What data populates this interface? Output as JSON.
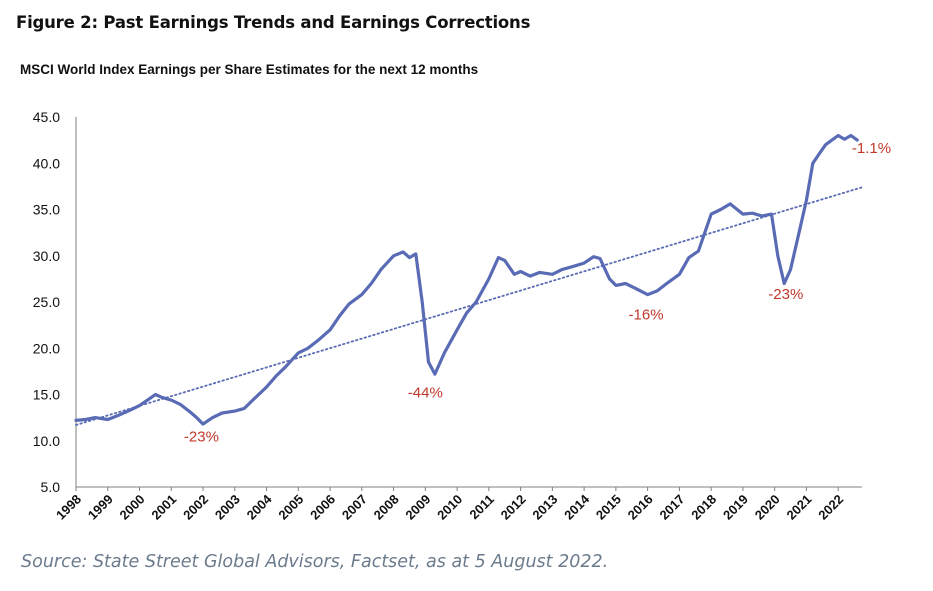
{
  "figure_title": "Figure 2: Past Earnings Trends and Earnings Corrections",
  "source_note": "Source: State Street Global Advisors, Factset, as at 5 August 2022.",
  "colors": {
    "series": "#5a6bb5",
    "trend": "#5a6bb5",
    "annotation": "#c0392b",
    "source_text": "#6b7b8c"
  },
  "chart_data": {
    "type": "line",
    "title": "MSCI World Index Earnings per Share Estimates for the next 12 months",
    "xlabel": "",
    "ylabel": "",
    "grid": false,
    "legend": "none",
    "ylim": [
      5,
      45
    ],
    "xlim": [
      1998.0,
      2022.75
    ],
    "yticks": [
      "5.0",
      "10.0",
      "15.0",
      "20.0",
      "25.0",
      "30.0",
      "35.0",
      "40.0",
      "45.0"
    ],
    "xticks": [
      "1998",
      "1999",
      "2000",
      "2001",
      "2002",
      "2003",
      "2004",
      "2005",
      "2006",
      "2007",
      "2008",
      "2009",
      "2010",
      "2011",
      "2012",
      "2013",
      "2014",
      "2015",
      "2016",
      "2017",
      "2018",
      "2019",
      "2020",
      "2021",
      "2022"
    ],
    "series": [
      {
        "type": "line",
        "x": [
          1998.0,
          1998.3,
          1998.6,
          1999.0,
          1999.3,
          1999.7,
          2000.0,
          2000.3,
          2000.5,
          2000.7,
          2001.0,
          2001.3,
          2001.6,
          2001.8,
          2002.0,
          2002.3,
          2002.6,
          2003.0,
          2003.3,
          2003.6,
          2004.0,
          2004.3,
          2004.6,
          2005.0,
          2005.3,
          2005.6,
          2006.0,
          2006.3,
          2006.6,
          2007.0,
          2007.3,
          2007.6,
          2008.0,
          2008.3,
          2008.5,
          2008.7,
          2008.9,
          2009.1,
          2009.3,
          2009.6,
          2010.0,
          2010.3,
          2010.6,
          2011.0,
          2011.3,
          2011.5,
          2011.8,
          2012.0,
          2012.3,
          2012.6,
          2013.0,
          2013.3,
          2013.6,
          2014.0,
          2014.3,
          2014.5,
          2014.8,
          2015.0,
          2015.3,
          2015.6,
          2016.0,
          2016.3,
          2016.6,
          2017.0,
          2017.3,
          2017.6,
          2018.0,
          2018.3,
          2018.6,
          2019.0,
          2019.3,
          2019.6,
          2019.9,
          2020.1,
          2020.3,
          2020.5,
          2020.8,
          2021.0,
          2021.2,
          2021.4,
          2021.6,
          2021.8,
          2022.0,
          2022.2,
          2022.4,
          2022.6
        ],
        "y": [
          12.2,
          12.3,
          12.5,
          12.3,
          12.7,
          13.3,
          13.8,
          14.5,
          15.0,
          14.7,
          14.4,
          13.9,
          13.1,
          12.5,
          11.8,
          12.5,
          13.0,
          13.2,
          13.5,
          14.5,
          15.8,
          17.0,
          18.0,
          19.5,
          20.0,
          20.8,
          22.0,
          23.5,
          24.8,
          25.8,
          27.0,
          28.5,
          30.0,
          30.4,
          29.8,
          30.2,
          25.0,
          18.5,
          17.2,
          19.5,
          22.0,
          23.8,
          25.0,
          27.5,
          29.8,
          29.5,
          28.0,
          28.3,
          27.8,
          28.2,
          28.0,
          28.5,
          28.8,
          29.2,
          29.9,
          29.7,
          27.5,
          26.8,
          27.0,
          26.5,
          25.8,
          26.2,
          27.0,
          28.0,
          29.8,
          30.5,
          34.5,
          35.0,
          35.6,
          34.5,
          34.6,
          34.3,
          34.5,
          30.0,
          27.0,
          28.5,
          33.0,
          36.0,
          40.0,
          41.0,
          42.0,
          42.5,
          43.0,
          42.6,
          43.0,
          42.5
        ]
      },
      {
        "type": "trend",
        "x": [
          1998.0,
          2022.75
        ],
        "y": [
          11.7,
          37.4
        ]
      }
    ],
    "annotations": [
      {
        "text": "-23%",
        "x": 2001.95,
        "y": 9.9
      },
      {
        "text": "-44%",
        "x": 2009.0,
        "y": 14.7
      },
      {
        "text": "-16%",
        "x": 2015.95,
        "y": 23.1
      },
      {
        "text": "-23%",
        "x": 2020.35,
        "y": 25.3
      },
      {
        "text": "-1.1%",
        "x": 2023.05,
        "y": 41.1
      }
    ]
  }
}
